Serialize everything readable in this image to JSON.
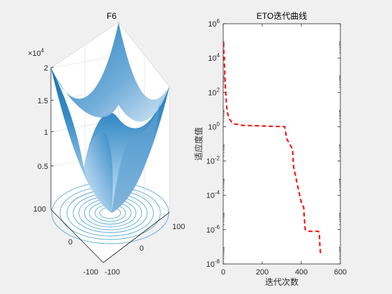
{
  "chart_data": [
    {
      "type": "surface",
      "title": "F6",
      "z_ticks": [
        "0.5",
        "1",
        "1.5",
        "2"
      ],
      "z_values": [
        0.5,
        1,
        1.5,
        2
      ],
      "z_exponent_label": "×10",
      "z_exponent_sup": "4",
      "x_ticks": [
        "100",
        "0",
        "-100"
      ],
      "y_ticks": [
        "-100",
        "0",
        "100"
      ],
      "xlim": [
        -100,
        100
      ],
      "ylim": [
        -100,
        100
      ],
      "zlim": [
        0,
        20000
      ],
      "colormap": [
        "#0b6aaa",
        "#2f86c4",
        "#7eb6de",
        "#cfe4f3"
      ],
      "contour_color": "#5aa9d6"
    },
    {
      "type": "line",
      "title": "ETO迭代曲线",
      "xlabel": "迭代次数",
      "ylabel": "适应度值",
      "xlim": [
        0,
        600
      ],
      "x_ticks": [
        "0",
        "200",
        "400",
        "600"
      ],
      "x_tick_values": [
        0,
        200,
        400,
        600
      ],
      "yscale": "log",
      "ylim": [
        1e-08,
        1000000.0
      ],
      "y_tick_base": "10",
      "y_tick_exponents": [
        "-8",
        "-6",
        "-4",
        "-2",
        "0",
        "2",
        "4",
        "6"
      ],
      "series": [
        {
          "color": "#ff0000",
          "style": "dashed",
          "x": [
            1,
            5,
            10,
            15,
            20,
            30,
            50,
            100,
            200,
            315,
            325,
            355,
            360,
            380,
            400,
            412,
            415,
            420,
            440,
            460,
            480,
            488,
            490,
            493,
            495,
            500
          ],
          "y": [
            80000,
            9000,
            400,
            40,
            8,
            3,
            1.5,
            1.2,
            1.1,
            1.0,
            0.2,
            0.05,
            0.005,
            0.0004,
            4e-05,
            2e-05,
            5e-06,
            1e-06,
            8e-07,
            8e-07,
            8e-07,
            8e-07,
            7e-07,
            5e-07,
            1e-07,
            3e-08
          ]
        }
      ]
    }
  ]
}
